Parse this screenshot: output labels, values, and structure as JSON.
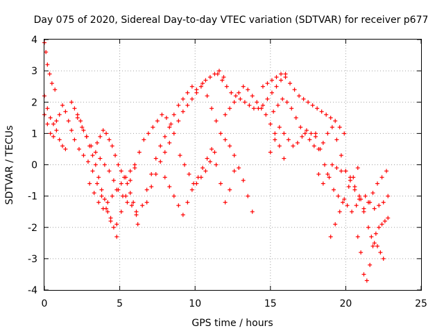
{
  "chart_data": {
    "type": "scatter",
    "title": "Day 075 of 2020, Sidereal Day-to-day VTEC variation (SDTVAR) for receiver p677",
    "xlabel": "GPS time / hours",
    "ylabel": "SDTVAR / TECUs",
    "xlim": [
      0,
      25
    ],
    "ylim": [
      -4,
      4
    ],
    "xticks": [
      "0",
      "5",
      "10",
      "15",
      "20",
      "25"
    ],
    "yticks": [
      "-4",
      "-3",
      "-2",
      "-1",
      "0",
      "1",
      "2",
      "3",
      "4"
    ],
    "grid": true,
    "marker": "plus",
    "color": "#ff0000",
    "series": [
      {
        "name": "arc-1",
        "x": [
          0.0,
          0.1,
          0.2,
          0.35,
          0.5,
          0.7
        ],
        "y": [
          3.9,
          3.6,
          3.2,
          2.9,
          2.6,
          2.4
        ]
      },
      {
        "name": "arc-2",
        "x": [
          0.0,
          0.2,
          0.4,
          0.6,
          0.8,
          1.0,
          1.2,
          1.4,
          1.6,
          1.8,
          2.0,
          2.3,
          2.6,
          2.9,
          3.2,
          3.5,
          3.8,
          4.1,
          4.4
        ],
        "y": [
          2.2,
          1.8,
          1.5,
          1.3,
          1.4,
          1.6,
          1.9,
          1.7,
          1.4,
          1.1,
          0.8,
          0.5,
          0.3,
          0.1,
          -0.2,
          -0.6,
          -1.0,
          -1.4,
          -1.7
        ]
      },
      {
        "name": "arc-3",
        "x": [
          0.0,
          0.2,
          0.4,
          0.6,
          0.8,
          1.0,
          1.2,
          1.4
        ],
        "y": [
          1.6,
          1.3,
          1.0,
          0.9,
          1.1,
          0.8,
          0.6,
          0.5
        ]
      },
      {
        "name": "arc-4",
        "x": [
          1.8,
          2.0,
          2.2,
          2.4,
          2.6,
          2.8,
          3.0,
          3.2,
          3.4,
          3.6,
          3.8,
          4.0,
          4.2,
          4.4,
          4.6,
          4.8
        ],
        "y": [
          2.0,
          1.8,
          1.6,
          1.4,
          1.1,
          0.9,
          0.6,
          0.3,
          0.0,
          -0.4,
          -0.8,
          -1.1,
          -1.5,
          -1.8,
          -2.0,
          -2.3
        ]
      },
      {
        "name": "arc-5",
        "x": [
          2.2,
          2.5,
          2.8,
          3.1,
          3.4,
          3.7,
          4.0,
          4.3,
          4.6,
          4.9,
          5.2,
          5.5,
          5.8,
          6.1
        ],
        "y": [
          1.5,
          1.2,
          0.9,
          0.6,
          0.4,
          0.2,
          0.0,
          -0.2,
          -0.5,
          -0.8,
          -1.0,
          -1.2,
          -1.3,
          -1.5
        ]
      },
      {
        "name": "arc-6",
        "x": [
          3.5,
          3.7,
          3.9,
          4.1,
          4.3,
          4.5,
          4.7,
          4.9,
          5.1,
          5.3,
          5.5,
          5.7,
          5.9,
          6.1
        ],
        "y": [
          0.7,
          0.9,
          1.1,
          1.0,
          0.8,
          0.6,
          0.3,
          0.0,
          -0.2,
          -0.4,
          -0.6,
          -0.9,
          -1.2,
          -1.6
        ]
      },
      {
        "name": "arc-7",
        "x": [
          3.0,
          3.3,
          3.6,
          3.9,
          4.2,
          4.5,
          4.8,
          5.1,
          5.4,
          5.7,
          6.0
        ],
        "y": [
          -0.6,
          -0.9,
          -1.2,
          -1.4,
          -1.2,
          -1.0,
          -0.8,
          -0.6,
          -0.4,
          -0.2,
          -0.1
        ]
      },
      {
        "name": "arc-8",
        "x": [
          4.8,
          5.1,
          5.4,
          5.7,
          6.0,
          6.3,
          6.6,
          6.9,
          7.2,
          7.5,
          7.8,
          8.1,
          8.4
        ],
        "y": [
          -1.9,
          -1.5,
          -1.0,
          -0.5,
          0.0,
          0.4,
          0.8,
          1.0,
          1.2,
          1.4,
          1.6,
          1.5,
          1.3
        ]
      },
      {
        "name": "arc-9",
        "x": [
          6.2,
          6.5,
          6.8,
          7.1,
          7.4,
          7.7,
          8.0,
          8.3,
          8.6,
          8.9,
          9.2,
          9.5,
          9.8,
          10.1
        ],
        "y": [
          -1.9,
          -1.3,
          -0.8,
          -0.3,
          0.2,
          0.6,
          0.9,
          1.2,
          1.6,
          1.9,
          2.1,
          2.3,
          2.5,
          2.4
        ]
      },
      {
        "name": "arc-10",
        "x": [
          6.8,
          7.1,
          7.4,
          7.7,
          8.0,
          8.3,
          8.6,
          8.9,
          9.2,
          9.5,
          9.8,
          10.1,
          10.4,
          10.7,
          11.0,
          11.3,
          11.6,
          11.9
        ],
        "y": [
          -1.2,
          -0.7,
          -0.3,
          0.1,
          0.4,
          0.7,
          1.0,
          1.4,
          1.7,
          1.9,
          2.1,
          2.3,
          2.5,
          2.7,
          2.8,
          2.9,
          3.0,
          2.8
        ]
      },
      {
        "name": "arc-11",
        "x": [
          8.0,
          8.3,
          8.6,
          8.9,
          9.2,
          9.5,
          9.8,
          10.1,
          10.4,
          10.7,
          11.0,
          11.3
        ],
        "y": [
          -0.4,
          -0.7,
          -1.0,
          -1.3,
          -1.6,
          -1.2,
          -0.8,
          -0.6,
          -0.4,
          -0.2,
          0.1,
          0.4
        ]
      },
      {
        "name": "arc-12",
        "x": [
          9.0,
          9.3,
          9.6,
          9.9,
          10.2,
          10.5,
          10.8,
          11.1,
          11.4,
          11.7,
          12.0,
          12.3,
          12.6
        ],
        "y": [
          0.3,
          0.0,
          -0.3,
          -0.6,
          -0.4,
          -0.1,
          0.2,
          0.5,
          0.0,
          -0.6,
          -1.2,
          -0.8,
          -0.2
        ]
      },
      {
        "name": "arc-13",
        "x": [
          10.5,
          10.8,
          11.1,
          11.4,
          11.7,
          12.0,
          12.3,
          12.6,
          12.9,
          13.2,
          13.5,
          13.8
        ],
        "y": [
          2.6,
          2.2,
          1.8,
          1.4,
          1.0,
          0.8,
          0.6,
          0.3,
          -0.1,
          -0.5,
          -1.0,
          -1.5
        ]
      },
      {
        "name": "arc-14",
        "x": [
          11.5,
          11.8,
          12.1,
          12.4,
          12.7,
          13.0,
          13.3,
          13.6,
          13.9,
          14.2,
          14.5,
          14.8,
          15.1,
          15.4,
          15.7,
          16.0
        ],
        "y": [
          2.9,
          2.7,
          2.5,
          2.3,
          2.2,
          2.1,
          2.0,
          1.9,
          1.8,
          1.8,
          1.9,
          2.1,
          2.3,
          2.5,
          2.7,
          2.9
        ]
      },
      {
        "name": "arc-15",
        "x": [
          12.0,
          12.3,
          12.6,
          12.9,
          13.2,
          13.5,
          13.8,
          14.1,
          14.4,
          14.7,
          15.0,
          15.3,
          15.6,
          15.9
        ],
        "y": [
          1.6,
          1.8,
          2.0,
          2.3,
          2.5,
          2.4,
          2.2,
          2.0,
          1.8,
          1.6,
          1.3,
          1.0,
          0.6,
          0.2
        ]
      },
      {
        "name": "arc-16",
        "x": [
          14.5,
          14.8,
          15.1,
          15.4,
          15.7,
          16.0,
          16.3,
          16.6,
          16.9,
          17.2,
          17.5,
          17.8,
          18.1,
          18.4,
          18.7,
          19.0,
          19.3,
          19.6,
          19.9
        ],
        "y": [
          2.5,
          2.6,
          2.7,
          2.8,
          2.9,
          2.8,
          2.6,
          2.4,
          2.2,
          2.1,
          2.0,
          1.9,
          1.8,
          1.7,
          1.6,
          1.5,
          1.4,
          1.2,
          1.0
        ]
      },
      {
        "name": "arc-17",
        "x": [
          15.2,
          15.5,
          15.8,
          16.1,
          16.4,
          16.7,
          17.0,
          17.3,
          17.6,
          17.9,
          18.2,
          18.5,
          18.8,
          19.1,
          19.4,
          19.7,
          20.0,
          20.3,
          20.6,
          20.9,
          21.2
        ],
        "y": [
          1.7,
          1.9,
          2.1,
          2.0,
          1.8,
          1.5,
          1.2,
          1.0,
          0.8,
          0.6,
          0.5,
          0.7,
          1.0,
          1.2,
          0.8,
          0.3,
          -0.2,
          -0.5,
          -0.8,
          -1.1,
          -1.4
        ]
      },
      {
        "name": "arc-18",
        "x": [
          15.0,
          15.3,
          15.6,
          15.9,
          16.2,
          16.5,
          16.8,
          17.1,
          17.4,
          17.7,
          18.0
        ],
        "y": [
          0.4,
          0.8,
          1.2,
          1.0,
          0.8,
          0.6,
          0.7,
          0.9,
          1.1,
          1.0,
          0.9
        ]
      },
      {
        "name": "arc-19",
        "x": [
          18.0,
          18.3,
          18.6,
          18.9,
          19.2,
          19.5,
          19.8,
          20.1,
          20.4,
          20.7,
          21.0,
          21.3,
          21.6,
          21.9,
          22.2,
          22.5,
          22.8
        ],
        "y": [
          1.0,
          0.5,
          0.0,
          -0.4,
          -0.8,
          -1.0,
          -1.2,
          -1.3,
          -1.5,
          -1.3,
          -1.1,
          -1.0,
          -1.2,
          -1.4,
          -1.3,
          -1.2,
          -1.0
        ]
      },
      {
        "name": "arc-20",
        "x": [
          18.2,
          18.5,
          18.8,
          19.1,
          19.4,
          19.7,
          20.0,
          20.3,
          20.6,
          20.9,
          21.2,
          21.5,
          21.8,
          22.1,
          22.4,
          22.7
        ],
        "y": [
          -0.3,
          -0.6,
          -0.3,
          0.0,
          -0.1,
          -0.2,
          -0.2,
          -0.4,
          -0.7,
          -1.0,
          -1.5,
          -1.2,
          -0.9,
          -0.6,
          -0.4,
          -0.2
        ]
      },
      {
        "name": "arc-21",
        "x": [
          19.0,
          19.3,
          19.6,
          19.9,
          20.2,
          20.5,
          20.8
        ],
        "y": [
          -2.3,
          -1.9,
          -1.5,
          -1.1,
          -0.7,
          -0.4,
          -0.1
        ]
      },
      {
        "name": "arc-22",
        "x": [
          20.8,
          21.0,
          21.2,
          21.4,
          21.6,
          21.8,
          22.0,
          22.2,
          22.4,
          22.6,
          22.8
        ],
        "y": [
          -2.3,
          -2.8,
          -3.5,
          -3.7,
          -3.2,
          -2.6,
          -2.2,
          -2.0,
          -1.9,
          -1.8,
          -1.7
        ]
      },
      {
        "name": "arc-23",
        "x": [
          21.5,
          21.7,
          21.9,
          22.1,
          22.3,
          22.5
        ],
        "y": [
          -2.0,
          -2.3,
          -2.5,
          -2.6,
          -2.8,
          -3.0
        ]
      }
    ]
  }
}
